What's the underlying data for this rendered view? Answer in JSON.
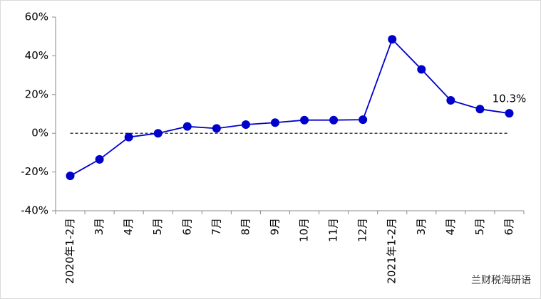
{
  "chart_data": {
    "type": "line",
    "categories": [
      "2020年1-2月",
      "3月",
      "4月",
      "5月",
      "6月",
      "7月",
      "8月",
      "9月",
      "10月",
      "11月",
      "12月",
      "2021年1-2月",
      "3月",
      "4月",
      "5月",
      "6月"
    ],
    "values": [
      -22,
      -13.5,
      -2,
      0,
      3.5,
      2.5,
      4.5,
      5.5,
      6.8,
      6.8,
      7,
      48.5,
      33,
      17,
      12.5,
      10.3
    ],
    "value_labels": [
      null,
      null,
      null,
      null,
      null,
      null,
      null,
      null,
      null,
      null,
      null,
      null,
      null,
      null,
      null,
      "10.3%"
    ],
    "color": "#0000cc",
    "ylim": [
      -40,
      60
    ],
    "yticks": [
      {
        "value": -40,
        "label": "-40%"
      },
      {
        "value": -20,
        "label": "-20%"
      },
      {
        "value": 0,
        "label": "0%"
      },
      {
        "value": 20,
        "label": "20%"
      },
      {
        "value": 40,
        "label": "40%"
      },
      {
        "value": 60,
        "label": "60%"
      }
    ],
    "watermark": "兰财税海研语"
  }
}
